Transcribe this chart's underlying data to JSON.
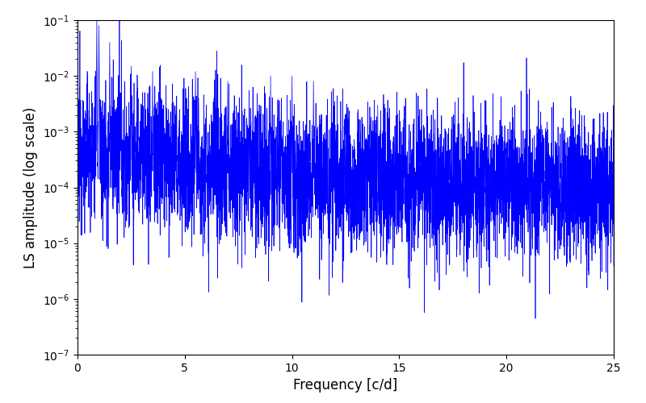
{
  "xlabel": "Frequency [c/d]",
  "ylabel": "LS amplitude (log scale)",
  "xlim": [
    0,
    25
  ],
  "ylim": [
    1e-07,
    0.1
  ],
  "line_color": "blue",
  "background_color": "white",
  "figsize": [
    8.0,
    5.0
  ],
  "dpi": 100,
  "seed": 12345,
  "n_points": 5000,
  "freq_max": 25.0,
  "base_amplitude": 0.0004,
  "decay_scale": 5.0,
  "noise_scale": 1.5,
  "noise_floor": 0.0001,
  "min_val": 5e-08
}
